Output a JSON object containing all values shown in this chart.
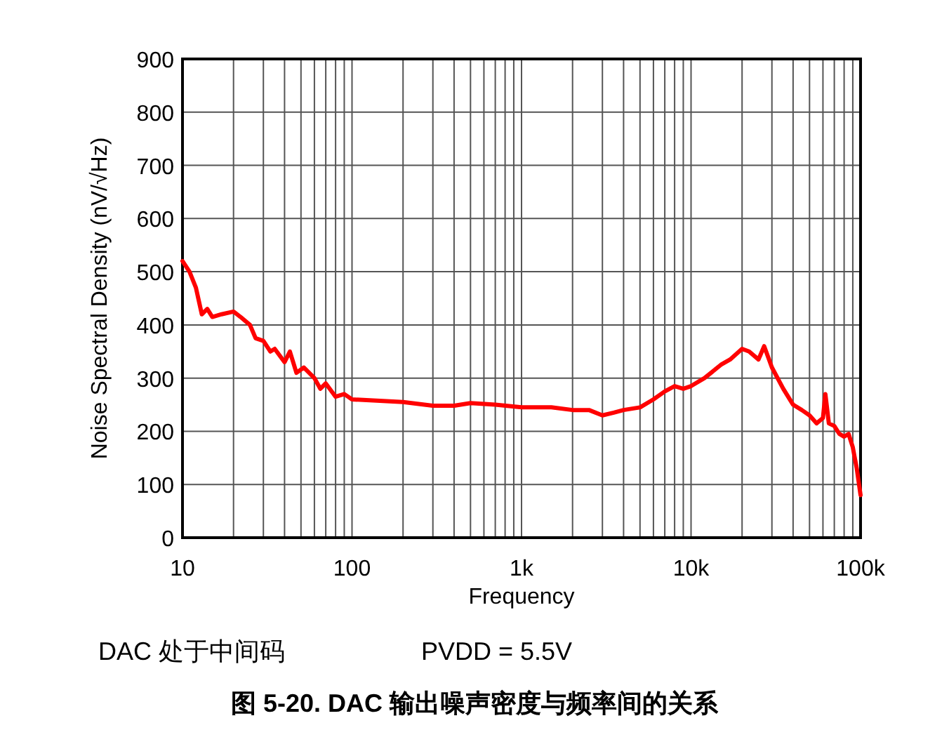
{
  "chart_data": {
    "type": "line",
    "title": "图 5-20. DAC 输出噪声密度与频率间的关系",
    "xlabel": "Frequency",
    "ylabel": "Noise Spectral Density (nV/√Hz)",
    "annotations": [
      "DAC 处于中间码",
      "PVDD = 5.5V"
    ],
    "log": "x",
    "grid": true,
    "line_style": "solid",
    "marker": "none",
    "xlim": [
      10,
      100000
    ],
    "xticks": [
      {
        "value": 10,
        "label": "10"
      },
      {
        "value": 100,
        "label": "100"
      },
      {
        "value": 1000,
        "label": "1k"
      },
      {
        "value": 10000,
        "label": "10k"
      },
      {
        "value": 100000,
        "label": "100k"
      }
    ],
    "ylim": [
      0,
      900
    ],
    "yticks": [
      0,
      100,
      200,
      300,
      400,
      500,
      600,
      700,
      800,
      900
    ],
    "series": [
      {
        "color": "#ff0000",
        "x": [
          10,
          11,
          12,
          13,
          14,
          15,
          17,
          20,
          22,
          25,
          27,
          30,
          33,
          35,
          40,
          43,
          47,
          52,
          60,
          65,
          70,
          80,
          90,
          100,
          200,
          300,
          400,
          500,
          700,
          1000,
          1500,
          2000,
          2500,
          3000,
          3500,
          4000,
          5000,
          6000,
          7000,
          8000,
          9000,
          10000,
          12000,
          15000,
          17000,
          20000,
          22000,
          25000,
          27000,
          30000,
          35000,
          40000,
          45000,
          50000,
          55000,
          60000,
          62000,
          65000,
          70000,
          75000,
          80000,
          85000,
          90000,
          95000,
          100000
        ],
        "values": [
          520,
          500,
          470,
          420,
          430,
          415,
          420,
          425,
          415,
          400,
          375,
          370,
          350,
          355,
          330,
          350,
          310,
          320,
          300,
          280,
          290,
          265,
          270,
          260,
          255,
          248,
          248,
          253,
          250,
          245,
          245,
          240,
          240,
          230,
          235,
          240,
          245,
          260,
          275,
          285,
          280,
          285,
          300,
          325,
          335,
          355,
          350,
          335,
          360,
          320,
          280,
          250,
          240,
          230,
          215,
          225,
          270,
          215,
          210,
          195,
          190,
          195,
          170,
          130,
          80
        ]
      }
    ]
  }
}
